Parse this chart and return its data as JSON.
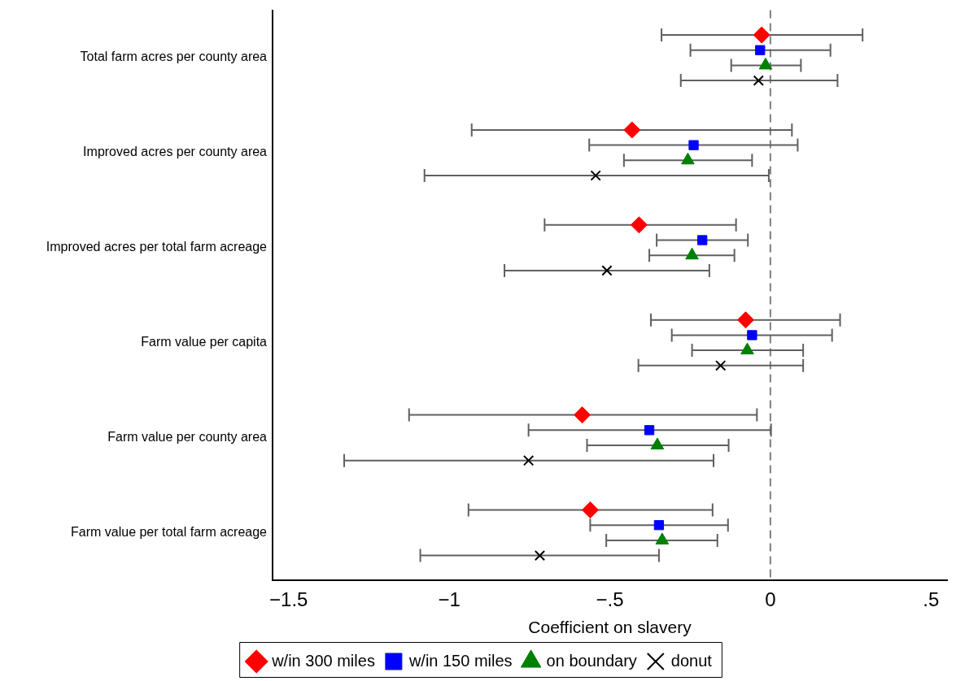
{
  "chart_data": {
    "type": "scatter",
    "orientation": "horizontal",
    "xlabel": "Coefficient on slavery",
    "categories": [
      "Total farm acres per county area",
      "Improved acres per county area",
      "Improved acres per total farm acreage",
      "Farm value per capita",
      "Farm value per county area",
      "Farm value per total farm acreage"
    ],
    "xlim": [
      -1.55,
      0.55
    ],
    "xticks": [
      {
        "value": -1.5,
        "label": "−1.5"
      },
      {
        "value": -1,
        "label": "−1"
      },
      {
        "value": -0.5,
        "label": "−.5"
      },
      {
        "value": 0,
        "label": "0"
      },
      {
        "value": 0.5,
        "label": ".5"
      }
    ],
    "grid": false,
    "legend": "bottom",
    "ref_lines": [
      {
        "axis": "x",
        "value": 0,
        "color": "#808080",
        "line_style": "dashed"
      }
    ],
    "series": [
      {
        "name": "w/in 300 miles",
        "color": "#ff0000",
        "marker": "diamond",
        "values": [
          -0.027,
          -0.431,
          -0.409,
          -0.077,
          -0.586,
          -0.561
        ],
        "errors": [
          [
            -0.339,
            0.287
          ],
          [
            -0.93,
            0.067
          ],
          [
            -0.703,
            -0.107
          ],
          [
            -0.372,
            0.217
          ],
          [
            -1.125,
            -0.042
          ],
          [
            -0.94,
            -0.18
          ]
        ]
      },
      {
        "name": "w/in 150 miles",
        "color": "#0000ff",
        "marker": "square",
        "values": [
          -0.032,
          -0.239,
          -0.212,
          -0.057,
          -0.377,
          -0.347
        ],
        "errors": [
          [
            -0.249,
            0.187
          ],
          [
            -0.564,
            0.085
          ],
          [
            -0.354,
            -0.07
          ],
          [
            -0.307,
            0.192
          ],
          [
            -0.753,
            0.002
          ],
          [
            -0.561,
            -0.132
          ]
        ]
      },
      {
        "name": "on boundary",
        "color": "#008000",
        "marker": "triangle",
        "values": [
          -0.015,
          -0.257,
          -0.244,
          -0.072,
          -0.352,
          -0.337
        ],
        "errors": [
          [
            -0.122,
            0.095
          ],
          [
            -0.456,
            -0.057
          ],
          [
            -0.377,
            -0.112
          ],
          [
            -0.244,
            0.102
          ],
          [
            -0.571,
            -0.13
          ],
          [
            -0.511,
            -0.165
          ]
        ]
      },
      {
        "name": "donut",
        "color": "#000000",
        "marker": "cross",
        "values": [
          -0.037,
          -0.544,
          -0.509,
          -0.155,
          -0.753,
          -0.718
        ],
        "errors": [
          [
            -0.279,
            0.209
          ],
          [
            -1.077,
            -0.005
          ],
          [
            -0.828,
            -0.19
          ],
          [
            -0.411,
            0.102
          ],
          [
            -1.327,
            -0.177
          ],
          [
            -1.09,
            -0.347
          ]
        ]
      }
    ]
  }
}
